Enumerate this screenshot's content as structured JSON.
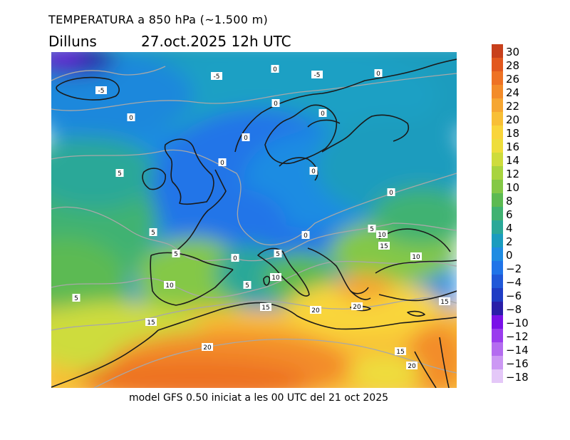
{
  "title": "TEMPERATURA a 850 hPa (~1.500 m)",
  "day": "Dilluns",
  "date": "27.oct.2025 12h UTC",
  "footer": "model GFS 0.50 iniciat a les 00 UTC del 21 oct 2025",
  "legend": [
    {
      "label": "30",
      "color": "#c8401c"
    },
    {
      "label": "28",
      "color": "#e2581e"
    },
    {
      "label": "26",
      "color": "#ee7224"
    },
    {
      "label": "24",
      "color": "#f38c2a"
    },
    {
      "label": "22",
      "color": "#f6a632"
    },
    {
      "label": "20",
      "color": "#f8bf36"
    },
    {
      "label": "18",
      "color": "#f9d53a"
    },
    {
      "label": "16",
      "color": "#eedd3c"
    },
    {
      "label": "14",
      "color": "#cedc3c"
    },
    {
      "label": "12",
      "color": "#a8d43e"
    },
    {
      "label": "10",
      "color": "#84c846"
    },
    {
      "label": "8",
      "color": "#5cba52"
    },
    {
      "label": "6",
      "color": "#40b272"
    },
    {
      "label": "4",
      "color": "#2aa898"
    },
    {
      "label": "2",
      "color": "#1a9cbe"
    },
    {
      "label": "0",
      "color": "#1e8ce2"
    },
    {
      "label": "−2",
      "color": "#2074e8"
    },
    {
      "label": "−4",
      "color": "#2058d8"
    },
    {
      "label": "−6",
      "color": "#1e3cc4"
    },
    {
      "label": "−8",
      "color": "#2a1ea8"
    },
    {
      "label": "−10",
      "color": "#7a10e8"
    },
    {
      "label": "−12",
      "color": "#9a3cee"
    },
    {
      "label": "−14",
      "color": "#b46cf0"
    },
    {
      "label": "−16",
      "color": "#cc98f4"
    },
    {
      "label": "−18",
      "color": "#e4c8f8"
    }
  ],
  "contour_labels": [
    "-5",
    "-5",
    "-5",
    "0",
    "0",
    "0",
    "0",
    "0",
    "0",
    "0",
    "0",
    "0",
    "0",
    "0",
    "5",
    "5",
    "5",
    "5",
    "5",
    "5",
    "5",
    "10",
    "10",
    "10",
    "10",
    "15",
    "15",
    "15",
    "15",
    "15",
    "20",
    "20",
    "20",
    "20"
  ]
}
